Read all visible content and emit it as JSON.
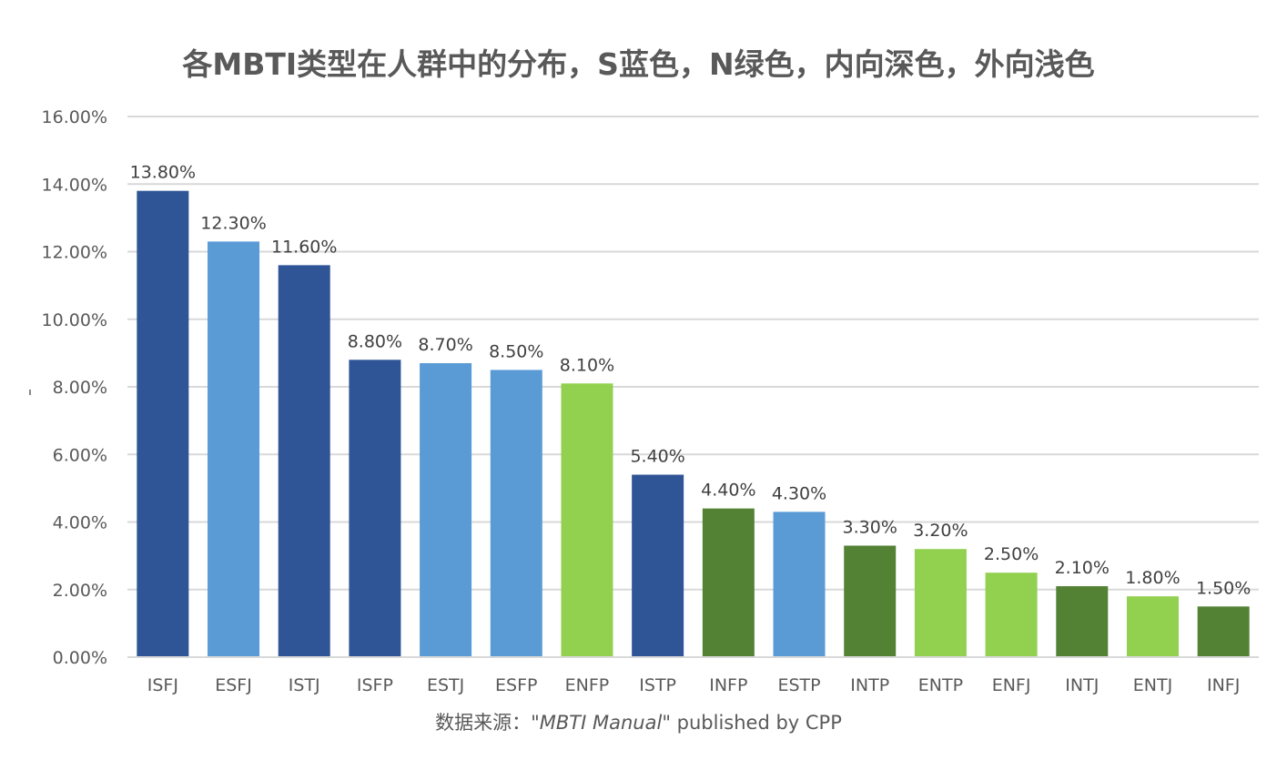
{
  "chart_data": {
    "type": "bar",
    "title": "各MBTI类型在人群中的分布，S蓝色，N绿色，内向深色，外向浅色",
    "xlabel": "",
    "ylabel": "",
    "categories": [
      "ISFJ",
      "ESFJ",
      "ISTJ",
      "ISFP",
      "ESTJ",
      "ESFP",
      "ENFP",
      "ISTP",
      "INFP",
      "ESTP",
      "INTP",
      "ENTP",
      "ENFJ",
      "INTJ",
      "ENTJ",
      "INFJ"
    ],
    "values": [
      13.8,
      12.3,
      11.6,
      8.8,
      8.7,
      8.5,
      8.1,
      5.4,
      4.4,
      4.3,
      3.3,
      3.2,
      2.5,
      2.1,
      1.8,
      1.5
    ],
    "value_unit": "percent",
    "data_labels": [
      "13.80%",
      "12.30%",
      "11.60%",
      "8.80%",
      "8.70%",
      "8.50%",
      "8.10%",
      "5.40%",
      "4.40%",
      "4.30%",
      "3.30%",
      "3.20%",
      "2.50%",
      "2.10%",
      "1.80%",
      "1.50%"
    ],
    "bar_groups": [
      "S-I",
      "S-E",
      "S-I",
      "S-I",
      "S-E",
      "S-E",
      "N-E",
      "S-I",
      "N-I",
      "S-E",
      "N-I",
      "N-E",
      "N-E",
      "N-I",
      "N-E",
      "N-I"
    ],
    "group_colors": {
      "S-I": "#2F5597",
      "S-E": "#5B9BD5",
      "N-I": "#548235",
      "N-E": "#92D050"
    },
    "ylim": [
      0,
      16
    ],
    "yticks": [
      0,
      2,
      4,
      6,
      8,
      10,
      12,
      14,
      16
    ],
    "ytick_labels": [
      "0.00%",
      "2.00%",
      "4.00%",
      "6.00%",
      "8.00%",
      "10.00%",
      "12.00%",
      "14.00%",
      "16.00%"
    ],
    "grid": true,
    "legend": "none",
    "source_note": {
      "prefix": "数据来源：\"",
      "italic": "MBTI Manual",
      "suffix": "\" published by CPP"
    }
  }
}
